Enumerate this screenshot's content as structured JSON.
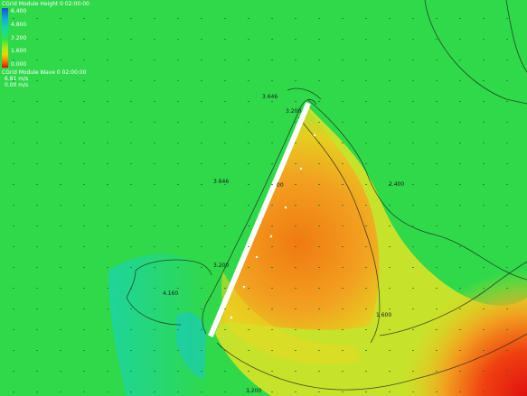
{
  "legend": {
    "height_title": "CGrid Module Height 0 02:00:00",
    "height_values": [
      "6.400",
      "4.800",
      "3.200",
      "1.600",
      "0.000"
    ],
    "wave_title": "CGrid Module Wave 0 02:00:00",
    "wave_max": "6.81 m/s",
    "wave_min": "0.00 m/s"
  },
  "contours": {
    "top": "3.646",
    "mid_left": "3.646",
    "right": "2.400",
    "near_top_line": "3.200",
    "lower_left": "4.160",
    "lower_right": "1.600",
    "near_line": "3.200",
    "bottom": "3.200",
    "mid_line": "00"
  },
  "colors": {
    "green": "#2fd94a",
    "orange": "#f08a00",
    "red": "#e01010",
    "yellow": "#f2d200"
  }
}
